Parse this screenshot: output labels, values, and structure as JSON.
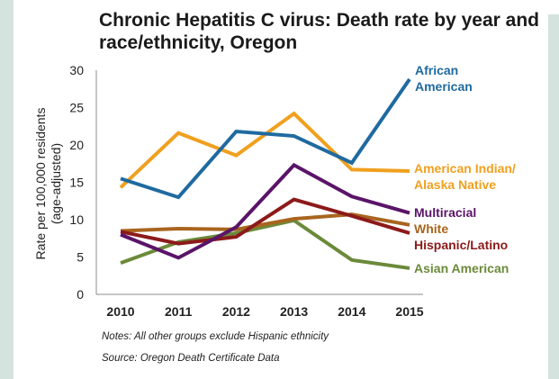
{
  "chart_data": {
    "type": "line",
    "title_line1": "Chronic Hepatitis C virus: Death rate by year and",
    "title_line2": "race/ethnicity, Oregon",
    "xlabel": "",
    "ylabel_line1": "Rate per 100,000 residents",
    "ylabel_line2": "(age-adjusted)",
    "x": [
      "2010",
      "2011",
      "2012",
      "2013",
      "2014",
      "2015"
    ],
    "ylim": [
      0,
      30
    ],
    "yticks": [
      "0",
      "5",
      "10",
      "15",
      "20",
      "25",
      "30"
    ],
    "grid": false,
    "legend": "direct labels at line ends",
    "series": [
      {
        "label_lines": [
          "African",
          "American"
        ],
        "color": "#1f6aa0",
        "values": [
          15.5,
          13.0,
          21.8,
          21.2,
          17.6,
          28.8
        ]
      },
      {
        "label_lines": [
          "American Indian/",
          "Alaska Native"
        ],
        "color": "#f0a01e",
        "values": [
          14.3,
          21.6,
          18.6,
          24.2,
          16.7,
          16.5
        ]
      },
      {
        "label_lines": [
          "Multiracial"
        ],
        "color": "#5a1468",
        "values": [
          8.0,
          4.9,
          9.0,
          17.3,
          13.1,
          10.9
        ]
      },
      {
        "label_lines": [
          "White"
        ],
        "color": "#a8651e",
        "values": [
          8.5,
          8.8,
          8.7,
          10.1,
          10.7,
          9.3
        ]
      },
      {
        "label_lines": [
          "Hispanic/Latino"
        ],
        "color": "#8c1a1a",
        "values": [
          8.4,
          6.8,
          7.7,
          12.7,
          10.5,
          8.2
        ]
      },
      {
        "label_lines": [
          "Asian American"
        ],
        "color": "#6b8a3a",
        "values": [
          4.2,
          7.0,
          8.2,
          9.9,
          4.6,
          3.5
        ]
      }
    ]
  },
  "notes": "Notes:   All other groups exclude Hispanic ethnicity",
  "source": "Source: Oregon Death Certificate Data"
}
